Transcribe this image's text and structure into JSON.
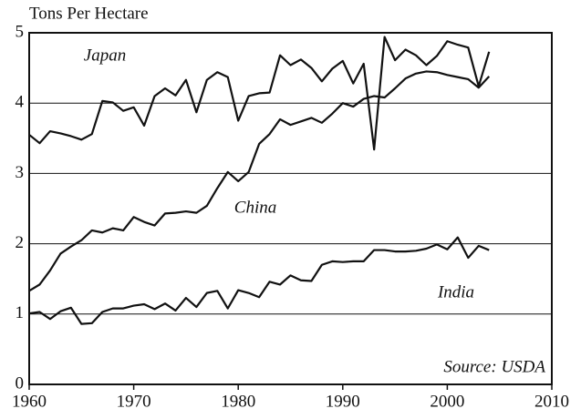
{
  "chart_data": {
    "type": "line",
    "ylabel": "Tons Per Hectare",
    "annotations": [
      "Source: USDA"
    ],
    "x": [
      1960,
      1961,
      1962,
      1963,
      1964,
      1965,
      1966,
      1967,
      1968,
      1969,
      1970,
      1971,
      1972,
      1973,
      1974,
      1975,
      1976,
      1977,
      1978,
      1979,
      1980,
      1981,
      1982,
      1983,
      1984,
      1985,
      1986,
      1987,
      1988,
      1989,
      1990,
      1991,
      1992,
      1993,
      1994,
      1995,
      1996,
      1997,
      1998,
      1999,
      2000,
      2001,
      2002,
      2003,
      2004
    ],
    "series": [
      {
        "name": "Japan",
        "color": "#111111",
        "values": [
          3.55,
          3.43,
          3.6,
          3.57,
          3.53,
          3.48,
          3.56,
          4.03,
          4.01,
          3.89,
          3.94,
          3.68,
          4.1,
          4.21,
          4.11,
          4.33,
          3.87,
          4.33,
          4.44,
          4.37,
          3.75,
          4.1,
          4.14,
          4.15,
          4.68,
          4.54,
          4.62,
          4.5,
          4.31,
          4.49,
          4.6,
          4.28,
          4.56,
          3.34,
          4.94,
          4.61,
          4.76,
          4.68,
          4.54,
          4.67,
          4.88,
          4.83,
          4.79,
          4.24,
          4.73
        ]
      },
      {
        "name": "China",
        "color": "#111111",
        "values": [
          1.33,
          1.42,
          1.62,
          1.86,
          1.96,
          2.05,
          2.19,
          2.16,
          2.22,
          2.19,
          2.38,
          2.31,
          2.26,
          2.43,
          2.44,
          2.46,
          2.44,
          2.54,
          2.79,
          3.02,
          2.89,
          3.02,
          3.42,
          3.56,
          3.77,
          3.69,
          3.74,
          3.79,
          3.72,
          3.85,
          4.0,
          3.95,
          4.06,
          4.1,
          4.08,
          4.21,
          4.35,
          4.42,
          4.45,
          4.44,
          4.4,
          4.37,
          4.34,
          4.22,
          4.38
        ]
      },
      {
        "name": "India",
        "color": "#111111",
        "values": [
          1.01,
          1.03,
          0.93,
          1.04,
          1.09,
          0.86,
          0.87,
          1.03,
          1.08,
          1.08,
          1.12,
          1.14,
          1.07,
          1.15,
          1.05,
          1.23,
          1.1,
          1.3,
          1.33,
          1.08,
          1.34,
          1.3,
          1.24,
          1.46,
          1.42,
          1.55,
          1.48,
          1.47,
          1.7,
          1.75,
          1.74,
          1.75,
          1.75,
          1.91,
          1.91,
          1.89,
          1.89,
          1.9,
          1.93,
          1.99,
          1.92,
          2.09,
          1.8,
          1.97,
          1.91
        ]
      }
    ],
    "xlim": [
      1960,
      2010
    ],
    "xticks": [
      1960,
      1970,
      1980,
      1990,
      2000,
      2010
    ],
    "ylim": [
      0,
      5
    ],
    "yticks": [
      0,
      1,
      2,
      3,
      4,
      5
    ],
    "grid": true
  }
}
